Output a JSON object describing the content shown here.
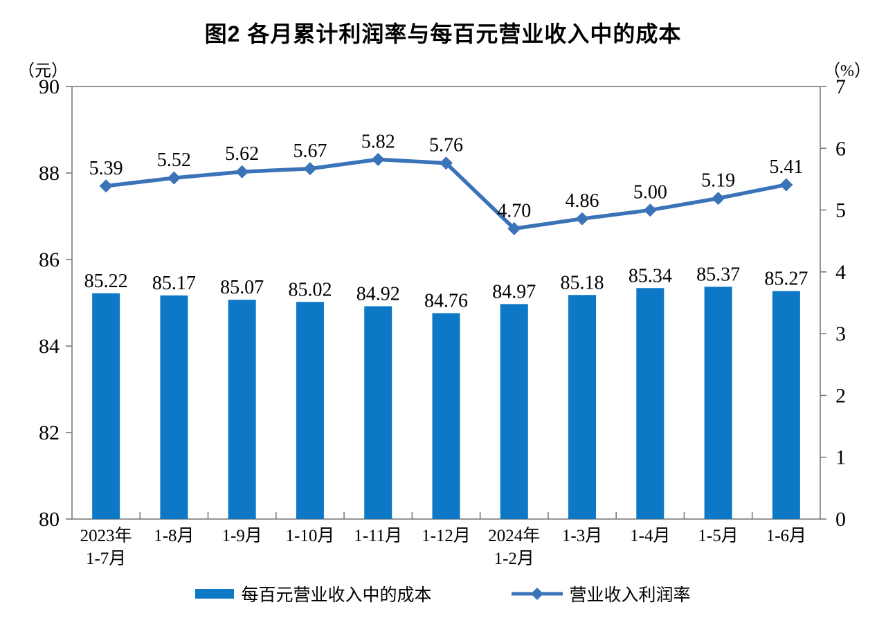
{
  "chart_data": {
    "type": "bar",
    "combo_types": [
      "bar",
      "line"
    ],
    "title": "图2  各月累计利润率与每百元营业收入中的成本",
    "categories": [
      [
        "2023年",
        "1-7月"
      ],
      [
        "1-8月"
      ],
      [
        "1-9月"
      ],
      [
        "1-10月"
      ],
      [
        "1-11月"
      ],
      [
        "1-12月"
      ],
      [
        "2024年",
        "1-2月"
      ],
      [
        "1-3月"
      ],
      [
        "1-4月"
      ],
      [
        "1-5月"
      ],
      [
        "1-6月"
      ]
    ],
    "series": [
      {
        "name": "每百元营业收入中的成本",
        "type": "bar",
        "axis": "left",
        "color": "#0d78c5",
        "values": [
          85.22,
          85.17,
          85.07,
          85.02,
          84.92,
          84.76,
          84.97,
          85.18,
          85.34,
          85.37,
          85.27
        ]
      },
      {
        "name": "营业收入利润率",
        "type": "line",
        "axis": "right",
        "marker": "diamond",
        "color": "#3b73b9",
        "values": [
          5.39,
          5.52,
          5.62,
          5.67,
          5.82,
          5.76,
          4.7,
          4.86,
          5.0,
          5.19,
          5.41
        ]
      }
    ],
    "left_axis": {
      "label": "（元）",
      "min": 80,
      "max": 90,
      "tick_step": 2,
      "tick_labels": [
        "80",
        "82",
        "84",
        "86",
        "88",
        "90"
      ]
    },
    "right_axis": {
      "label": "（%）",
      "min": 0,
      "max": 7,
      "tick_step": 1,
      "tick_labels": [
        "0",
        "1",
        "2",
        "3",
        "4",
        "5",
        "6",
        "7"
      ]
    },
    "grid": false,
    "value_labels": true,
    "legend_position": "bottom",
    "axis_color": "#7a7a7a",
    "text_color": "#000000"
  }
}
